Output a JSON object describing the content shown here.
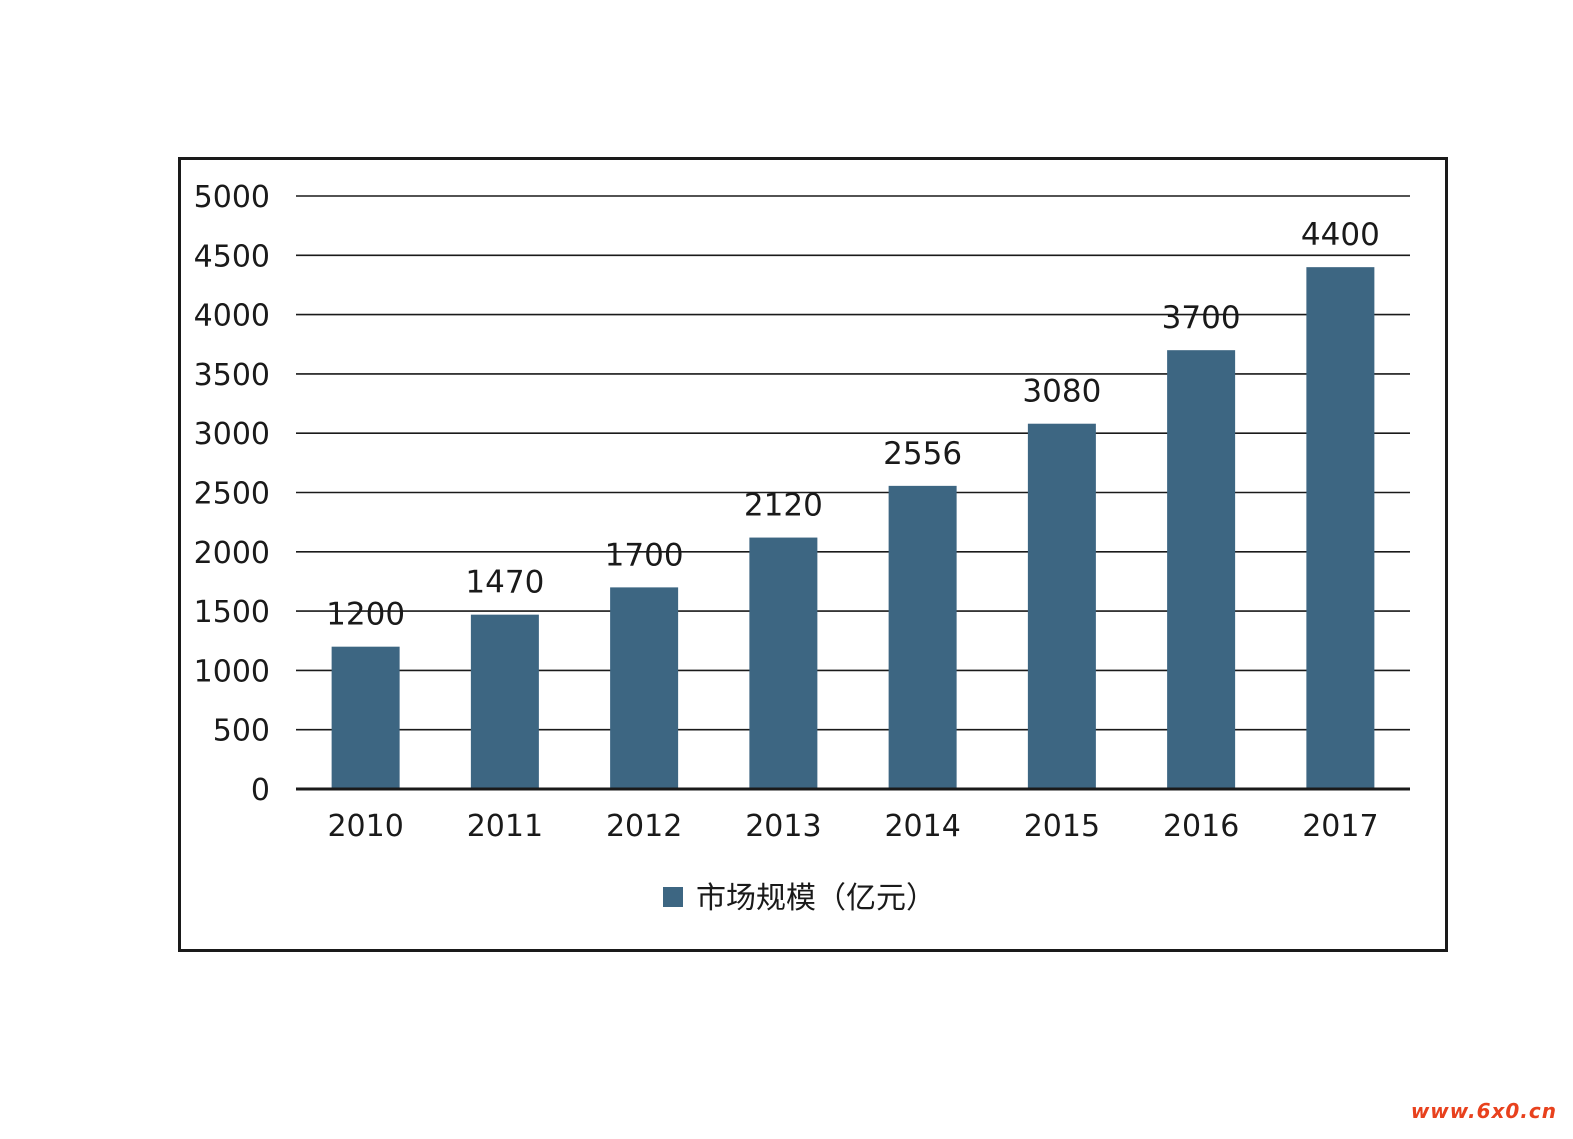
{
  "chart_data": {
    "type": "bar",
    "title": "",
    "xlabel": "",
    "ylabel": "",
    "categories": [
      "2010",
      "2011",
      "2012",
      "2013",
      "2014",
      "2015",
      "2016",
      "2017"
    ],
    "series": [
      {
        "name": "市场规模（亿元）",
        "values": [
          1200,
          1470,
          1700,
          2120,
          2556,
          3080,
          3700,
          4400
        ],
        "color": "#3d6682"
      }
    ],
    "data_labels": [
      "1200",
      "1470",
      "1700",
      "2120",
      "2556",
      "3080",
      "3700",
      "4400"
    ],
    "ylim": [
      0,
      5000
    ],
    "y_ticks": [
      0,
      500,
      1000,
      1500,
      2000,
      2500,
      3000,
      3500,
      4000,
      4500,
      5000
    ],
    "grid": true,
    "legend_position": "bottom"
  },
  "watermark": {
    "text": "www.6x0.cn",
    "color": "#e8411d"
  }
}
